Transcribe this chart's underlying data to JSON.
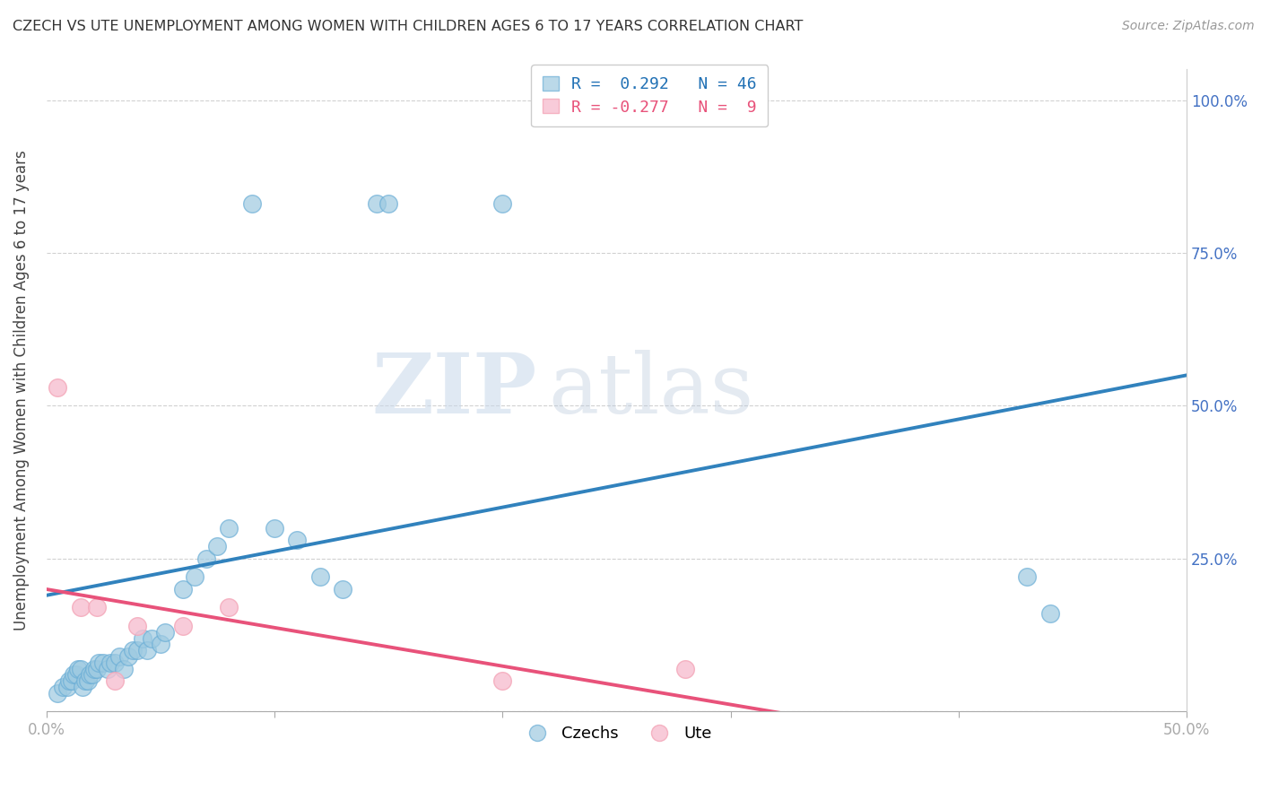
{
  "title": "CZECH VS UTE UNEMPLOYMENT AMONG WOMEN WITH CHILDREN AGES 6 TO 17 YEARS CORRELATION CHART",
  "source": "Source: ZipAtlas.com",
  "ylabel": "Unemployment Among Women with Children Ages 6 to 17 years",
  "xlim": [
    0.0,
    0.5
  ],
  "ylim": [
    0.0,
    1.05
  ],
  "xticks": [
    0.0,
    0.1,
    0.2,
    0.3,
    0.4,
    0.5
  ],
  "yticks": [
    0.0,
    0.25,
    0.5,
    0.75,
    1.0
  ],
  "xticklabels": [
    "0.0%",
    "",
    "",
    "",
    "",
    "50.0%"
  ],
  "yticklabels_left": [
    "",
    "",
    "",
    "",
    ""
  ],
  "yticklabels_right": [
    "",
    "25.0%",
    "50.0%",
    "75.0%",
    "100.0%"
  ],
  "czech_color": "#9ecae1",
  "czech_edge_color": "#6baed6",
  "ute_color": "#f7bfd0",
  "ute_edge_color": "#f4a6b8",
  "czech_line_color": "#3182bd",
  "ute_line_color": "#e8527a",
  "watermark_zip": "ZIP",
  "watermark_atlas": "atlas",
  "legend_R_czech": "R =  0.292",
  "legend_N_czech": "N = 46",
  "legend_R_ute": "R = -0.277",
  "legend_N_ute": "N =  9",
  "czech_x": [
    0.005,
    0.007,
    0.009,
    0.01,
    0.011,
    0.012,
    0.013,
    0.014,
    0.015,
    0.016,
    0.017,
    0.018,
    0.019,
    0.02,
    0.021,
    0.022,
    0.023,
    0.025,
    0.027,
    0.028,
    0.03,
    0.032,
    0.034,
    0.036,
    0.038,
    0.04,
    0.042,
    0.044,
    0.046,
    0.05,
    0.052,
    0.06,
    0.065,
    0.07,
    0.075,
    0.08,
    0.09,
    0.1,
    0.11,
    0.12,
    0.13,
    0.145,
    0.15,
    0.2,
    0.43,
    0.44
  ],
  "czech_y": [
    0.03,
    0.04,
    0.04,
    0.05,
    0.05,
    0.06,
    0.06,
    0.07,
    0.07,
    0.04,
    0.05,
    0.05,
    0.06,
    0.06,
    0.07,
    0.07,
    0.08,
    0.08,
    0.07,
    0.08,
    0.08,
    0.09,
    0.07,
    0.09,
    0.1,
    0.1,
    0.12,
    0.1,
    0.12,
    0.11,
    0.13,
    0.2,
    0.22,
    0.25,
    0.27,
    0.3,
    0.83,
    0.3,
    0.28,
    0.22,
    0.2,
    0.83,
    0.83,
    0.83,
    0.22,
    0.16
  ],
  "ute_x": [
    0.005,
    0.015,
    0.022,
    0.03,
    0.04,
    0.06,
    0.08,
    0.2,
    0.28
  ],
  "ute_y": [
    0.53,
    0.17,
    0.17,
    0.05,
    0.14,
    0.14,
    0.17,
    0.05,
    0.07
  ],
  "czech_trendline_x": [
    0.0,
    0.5
  ],
  "czech_trendline_y": [
    0.19,
    0.55
  ],
  "ute_trendline_x": [
    0.0,
    0.35
  ],
  "ute_trendline_y": [
    0.2,
    -0.02
  ]
}
